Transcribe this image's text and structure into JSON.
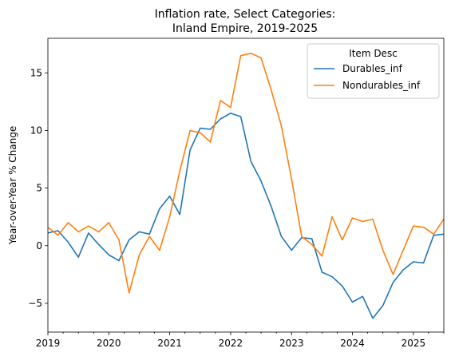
{
  "chart_data": {
    "type": "line",
    "title": "Inflation rate, Select Categories:",
    "subtitle": "Inland Empire, 2019-2025",
    "ylabel": "Year-over-Year % Change",
    "xlabel": "",
    "ylim": [
      -7.5,
      18
    ],
    "xlim": [
      "2019-01",
      "2025-07"
    ],
    "yticks": [
      -5,
      0,
      5,
      10,
      15
    ],
    "yticklabels": [
      "−5",
      "0",
      "5",
      "10",
      "15"
    ],
    "xticklabels": [
      "2019",
      "2020",
      "2021",
      "2022",
      "2023",
      "2024",
      "2025"
    ],
    "grid": false,
    "legend": {
      "title": "Item Desc",
      "position": "top-right"
    },
    "x": [
      "2019-01",
      "2019-03",
      "2019-05",
      "2019-07",
      "2019-09",
      "2019-11",
      "2020-01",
      "2020-03",
      "2020-05",
      "2020-07",
      "2020-09",
      "2020-11",
      "2021-01",
      "2021-03",
      "2021-05",
      "2021-07",
      "2021-09",
      "2021-11",
      "2022-01",
      "2022-03",
      "2022-05",
      "2022-07",
      "2022-09",
      "2022-11",
      "2023-01",
      "2023-03",
      "2023-05",
      "2023-07",
      "2023-09",
      "2023-11",
      "2024-01",
      "2024-03",
      "2024-05",
      "2024-07",
      "2024-09",
      "2024-11",
      "2025-01",
      "2025-03",
      "2025-05",
      "2025-07"
    ],
    "series": [
      {
        "name": "Durables_inf",
        "color": "#1f77b4",
        "values": [
          1.1,
          1.3,
          0.3,
          -1.0,
          1.1,
          0.1,
          -0.8,
          -1.3,
          0.5,
          1.2,
          1.0,
          3.2,
          4.3,
          2.7,
          8.3,
          10.2,
          10.1,
          11.0,
          11.5,
          11.2,
          7.3,
          5.6,
          3.4,
          0.8,
          -0.4,
          0.7,
          0.6,
          -2.3,
          -2.7,
          -3.5,
          -4.9,
          -4.4,
          -6.3,
          -5.2,
          -3.2,
          -2.1,
          -1.4,
          -1.5,
          0.9,
          1.0
        ]
      },
      {
        "name": "Nondurables_inf",
        "color": "#ff7f0e",
        "values": [
          1.6,
          0.9,
          2.0,
          1.2,
          1.7,
          1.2,
          2.0,
          0.5,
          -4.1,
          -0.8,
          0.8,
          -0.4,
          2.5,
          6.5,
          10.0,
          9.8,
          9.0,
          12.6,
          12.0,
          16.5,
          16.7,
          16.3,
          13.5,
          10.4,
          5.8,
          0.8,
          0.1,
          -0.9,
          2.5,
          0.5,
          2.4,
          2.1,
          2.3,
          -0.4,
          -2.5,
          -0.4,
          1.7,
          1.6,
          1.0,
          2.3
        ]
      }
    ]
  }
}
